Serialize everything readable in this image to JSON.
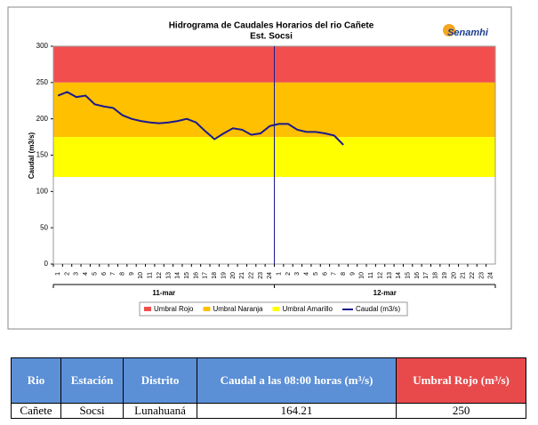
{
  "chart_data": {
    "type": "line",
    "title": "Hidrograma de Caudales Horarios del rio Cañete",
    "subtitle": "Est. Socsi",
    "logo": "Senamhi",
    "ylabel": "Caudal  (m3/s)",
    "categories": [
      "1",
      "2",
      "3",
      "4",
      "5",
      "6",
      "7",
      "8",
      "9",
      "10",
      "11",
      "12",
      "13",
      "14",
      "15",
      "16",
      "17",
      "18",
      "19",
      "20",
      "21",
      "22",
      "23",
      "24",
      "1",
      "2",
      "3",
      "4",
      "5",
      "6",
      "7",
      "8",
      "9",
      "10",
      "11",
      "12",
      "13",
      "14",
      "15",
      "16",
      "17",
      "18",
      "19",
      "20",
      "21",
      "22",
      "23",
      "24"
    ],
    "groups": [
      "11-mar",
      "12-mar"
    ],
    "ylim": [
      0,
      300
    ],
    "yticks": [
      0,
      50,
      100,
      150,
      200,
      250,
      300
    ],
    "bands": [
      {
        "name": "Umbral Rojo",
        "color": "#f24e4e",
        "from": 250,
        "to": 300
      },
      {
        "name": "Umbral Naranja",
        "color": "#ffc000",
        "from": 175,
        "to": 250
      },
      {
        "name": "Umbral Amarillo",
        "color": "#ffff00",
        "from": 120,
        "to": 175
      }
    ],
    "series": [
      {
        "name": "Caudal (m3/s)",
        "color": "#1a1a8c",
        "values": [
          232,
          237,
          230,
          232,
          220,
          217,
          215,
          205,
          200,
          197,
          195,
          194,
          195,
          197,
          200,
          195,
          183,
          172,
          180,
          187,
          185,
          178,
          180,
          190,
          193,
          193,
          185,
          182,
          182,
          180,
          177,
          164.21,
          null,
          null,
          null,
          null,
          null,
          null,
          null,
          null,
          null,
          null,
          null,
          null,
          null,
          null,
          null,
          null
        ]
      }
    ]
  },
  "table": {
    "headers": [
      "Rio",
      "Estación",
      "Distrito",
      "Caudal a las 08:00 horas (m³/s)",
      "Umbral Rojo (m³/s)"
    ],
    "rows": [
      [
        "Cañete",
        "Socsi",
        "Lunahuaná",
        "164.21",
        "250"
      ]
    ]
  }
}
